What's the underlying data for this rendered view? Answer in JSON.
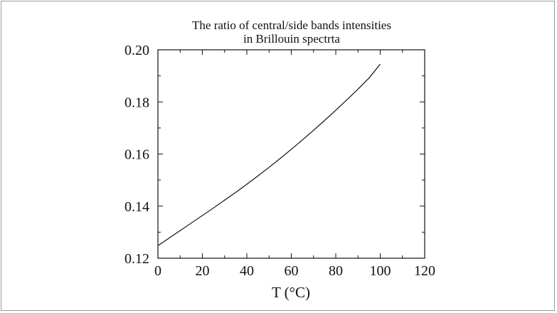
{
  "chart_data": {
    "type": "line",
    "title": [
      "The ratio of central/side bands intensities",
      "in Brillouin spectrta"
    ],
    "xlabel": "T (°C)",
    "ylabel": "",
    "xlim": [
      0,
      120
    ],
    "ylim": [
      0.12,
      0.2
    ],
    "xticks": [
      "0",
      "20",
      "40",
      "60",
      "80",
      "100",
      "120"
    ],
    "yticks": [
      "0.12",
      "0.14",
      "0.16",
      "0.18",
      "0.20"
    ],
    "grid": false,
    "series": [
      {
        "x": [
          0,
          5,
          10,
          15,
          20,
          25,
          30,
          35,
          40,
          45,
          50,
          55,
          60,
          65,
          70,
          75,
          80,
          85,
          90,
          95,
          100
        ],
        "y": [
          0.1248,
          0.1277,
          0.1306,
          0.1335,
          0.1364,
          0.1393,
          0.1423,
          0.1453,
          0.1484,
          0.1516,
          0.1549,
          0.1583,
          0.1618,
          0.1654,
          0.1691,
          0.1729,
          0.1768,
          0.1808,
          0.1849,
          0.1892,
          0.1945
        ]
      }
    ]
  }
}
